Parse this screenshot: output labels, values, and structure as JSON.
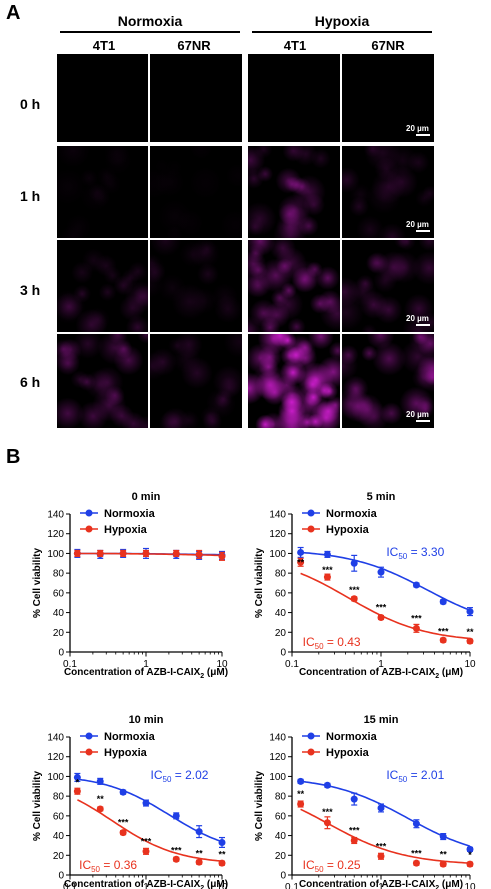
{
  "panelA": {
    "letter": "A",
    "conditions": [
      "Normoxia",
      "Hypoxia"
    ],
    "cell_lines": [
      "4T1",
      "67NR",
      "4T1",
      "67NR"
    ],
    "timepoints": [
      "0 h",
      "1 h",
      "3 h",
      "6 h"
    ],
    "scalebar": "20 µm",
    "signal": [
      [
        0.0,
        0.0,
        0.0,
        0.0
      ],
      [
        0.05,
        0.03,
        0.35,
        0.18
      ],
      [
        0.22,
        0.12,
        0.5,
        0.3
      ],
      [
        0.35,
        0.2,
        0.95,
        0.45
      ]
    ],
    "fluor_color": "#d21ed2"
  },
  "panelB": {
    "letter": "B",
    "colors": {
      "normoxia": "#1f3fe6",
      "hypoxia": "#e8321e"
    },
    "chart_data": [
      {
        "type": "line",
        "title": "0 min",
        "xlabel": "Concentration of AZB-I-CAIX",
        "xlabel_sub": "2",
        "xlabel_unit": " (μM)",
        "ylabel": "% Cell viability",
        "xscale": "log",
        "xlim": [
          0.1,
          10
        ],
        "ylim": [
          0,
          140
        ],
        "xticks": [
          "0.1",
          "1",
          "10"
        ],
        "yticks": [
          "0",
          "20",
          "40",
          "60",
          "80",
          "100",
          "120",
          "140"
        ],
        "legend": [
          "Normoxia",
          "Hypoxia"
        ],
        "x": [
          0.125,
          0.25,
          0.5,
          1,
          2.5,
          5,
          10
        ],
        "series": [
          {
            "name": "Normoxia",
            "values": [
              100,
              99,
              100,
              100,
              99,
              98,
              98
            ],
            "err": [
              4,
              4,
              4,
              5,
              4,
              4,
              4
            ]
          },
          {
            "name": "Hypoxia",
            "values": [
              100,
              100,
              100,
              100,
              100,
              99,
              97
            ],
            "err": [
              3,
              3,
              3,
              3,
              3,
              4,
              4
            ]
          }
        ],
        "curve_norm": {
          "top": 100,
          "bottom": 98,
          "ic50": 5
        },
        "curve_hyp": {
          "top": 100,
          "bottom": 97,
          "ic50": 5
        },
        "ic50_norm": "",
        "ic50_hyp": "",
        "stars": []
      },
      {
        "type": "line",
        "title": "5 min",
        "xlabel": "Concentration of AZB-I-CAIX",
        "xlabel_sub": "2",
        "xlabel_unit": " (μM)",
        "ylabel": "% Cell viability",
        "xscale": "log",
        "xlim": [
          0.1,
          10
        ],
        "ylim": [
          0,
          140
        ],
        "xticks": [
          "0.1",
          "1",
          "10"
        ],
        "yticks": [
          "0",
          "20",
          "40",
          "60",
          "80",
          "100",
          "120",
          "140"
        ],
        "legend": [
          "Normoxia",
          "Hypoxia"
        ],
        "x": [
          0.125,
          0.25,
          0.5,
          1,
          2.5,
          5,
          10
        ],
        "series": [
          {
            "name": "Normoxia",
            "values": [
              101,
              99,
              90,
              81,
              68,
              51,
              41
            ],
            "err": [
              5,
              3,
              8,
              5,
              2,
              2,
              4
            ]
          },
          {
            "name": "Hypoxia",
            "values": [
              91,
              76,
              54,
              35,
              24,
              12,
              11
            ],
            "err": [
              4,
              3,
              2,
              2,
              4,
              2,
              2
            ]
          }
        ],
        "curve_norm": {
          "top": 104,
          "bottom": 22,
          "ic50": 3.3
        },
        "curve_hyp": {
          "top": 100,
          "bottom": 10,
          "ic50": 0.43
        },
        "ic50_norm": "3.30",
        "ic50_hyp": "0.43",
        "stars": [
          {
            "x": 0.125,
            "y": 88,
            "t": "**"
          },
          {
            "x": 0.25,
            "y": 80,
            "t": "***"
          },
          {
            "x": 0.5,
            "y": 60,
            "t": "***"
          },
          {
            "x": 1,
            "y": 42,
            "t": "***"
          },
          {
            "x": 2.5,
            "y": 31,
            "t": "***"
          },
          {
            "x": 5,
            "y": 18,
            "t": "***"
          },
          {
            "x": 10,
            "y": 17,
            "t": "**"
          }
        ]
      },
      {
        "type": "line",
        "title": "10 min",
        "xlabel": "Concentration of AZB-I-CAIX",
        "xlabel_sub": "2",
        "xlabel_unit": " (μM)",
        "ylabel": "% Cell viability",
        "xscale": "log",
        "xlim": [
          0.1,
          10
        ],
        "ylim": [
          0,
          140
        ],
        "xticks": [
          "0.1",
          "1",
          "10"
        ],
        "yticks": [
          "0",
          "20",
          "40",
          "60",
          "80",
          "100",
          "120",
          "140"
        ],
        "legend": [
          "Normoxia",
          "Hypoxia"
        ],
        "x": [
          0.125,
          0.25,
          0.5,
          1,
          2.5,
          5,
          10
        ],
        "series": [
          {
            "name": "Normoxia",
            "values": [
              99,
              95,
              84,
              73,
              60,
              44,
              33
            ],
            "err": [
              4,
              3,
              2,
              3,
              3,
              6,
              5
            ]
          },
          {
            "name": "Hypoxia",
            "values": [
              85,
              67,
              43,
              24,
              16,
              13,
              12
            ],
            "err": [
              3,
              2,
              2,
              3,
              2,
              2,
              2
            ]
          }
        ],
        "curve_norm": {
          "top": 102,
          "bottom": 20,
          "ic50": 2.02
        },
        "curve_hyp": {
          "top": 99,
          "bottom": 11,
          "ic50": 0.36
        },
        "ic50_norm": "2.02",
        "ic50_hyp": "0.36",
        "stars": [
          {
            "x": 0.125,
            "y": 91,
            "t": "*"
          },
          {
            "x": 0.25,
            "y": 74,
            "t": "**"
          },
          {
            "x": 0.5,
            "y": 50,
            "t": "***"
          },
          {
            "x": 1,
            "y": 31,
            "t": "***"
          },
          {
            "x": 2.5,
            "y": 22,
            "t": "***"
          },
          {
            "x": 5,
            "y": 19,
            "t": "**"
          },
          {
            "x": 10,
            "y": 18,
            "t": "**"
          }
        ]
      },
      {
        "type": "line",
        "title": "15 min",
        "xlabel": "Concentration of AZB-I-CAIX",
        "xlabel_sub": "2",
        "xlabel_unit": " (μM)",
        "ylabel": "% Cell viability",
        "xscale": "log",
        "xlim": [
          0.1,
          10
        ],
        "ylim": [
          0,
          140
        ],
        "xticks": [
          "0.1",
          "1",
          "10"
        ],
        "yticks": [
          "0",
          "20",
          "40",
          "60",
          "80",
          "100",
          "120",
          "140"
        ],
        "legend": [
          "Normoxia",
          "Hypoxia"
        ],
        "x": [
          0.125,
          0.25,
          0.5,
          1,
          2.5,
          5,
          10
        ],
        "series": [
          {
            "name": "Normoxia",
            "values": [
              95,
              91,
              77,
              68,
              52,
              39,
              26
            ],
            "err": [
              2,
              2,
              6,
              4,
              4,
              3,
              2
            ]
          },
          {
            "name": "Hypoxia",
            "values": [
              72,
              53,
              35,
              19,
              12,
              11,
              11
            ],
            "err": [
              3,
              6,
              3,
              3,
              2,
              2,
              2
            ]
          }
        ],
        "curve_norm": {
          "top": 100,
          "bottom": 15,
          "ic50": 2.01
        },
        "curve_hyp": {
          "top": 95,
          "bottom": 10,
          "ic50": 0.25
        },
        "ic50_norm": "2.01",
        "ic50_hyp": "0.25",
        "stars": [
          {
            "x": 0.125,
            "y": 79,
            "t": "**"
          },
          {
            "x": 0.25,
            "y": 61,
            "t": "***"
          },
          {
            "x": 0.5,
            "y": 42,
            "t": "***"
          },
          {
            "x": 1,
            "y": 26,
            "t": "***"
          },
          {
            "x": 2.5,
            "y": 19,
            "t": "***"
          },
          {
            "x": 5,
            "y": 18,
            "t": "**"
          },
          {
            "x": 10,
            "y": 17,
            "t": "*"
          }
        ]
      }
    ]
  }
}
